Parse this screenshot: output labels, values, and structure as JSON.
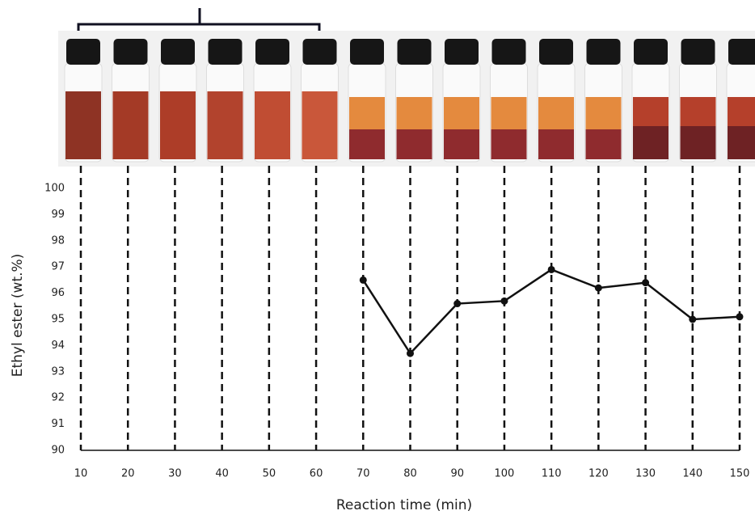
{
  "chart_data": {
    "type": "line",
    "x_label": "Reaction time (min)",
    "y_label": "Ethyl ester (wt.%)",
    "x": [
      10,
      20,
      30,
      40,
      50,
      60,
      70,
      80,
      90,
      100,
      110,
      120,
      130,
      140,
      150
    ],
    "values": [
      null,
      null,
      null,
      null,
      null,
      null,
      96.5,
      93.7,
      95.6,
      95.7,
      96.9,
      96.2,
      96.4,
      95.0,
      95.1
    ],
    "color": "#111111",
    "xlim": [
      10,
      150
    ],
    "xticks": [
      10,
      20,
      30,
      40,
      50,
      60,
      70,
      80,
      90,
      100,
      110,
      120,
      130,
      140,
      150
    ],
    "ylim": [
      90,
      100
    ],
    "yticks": [
      90,
      91,
      92,
      93,
      94,
      95,
      96,
      97,
      98,
      99,
      100
    ],
    "grid": "x-dashed"
  }
}
